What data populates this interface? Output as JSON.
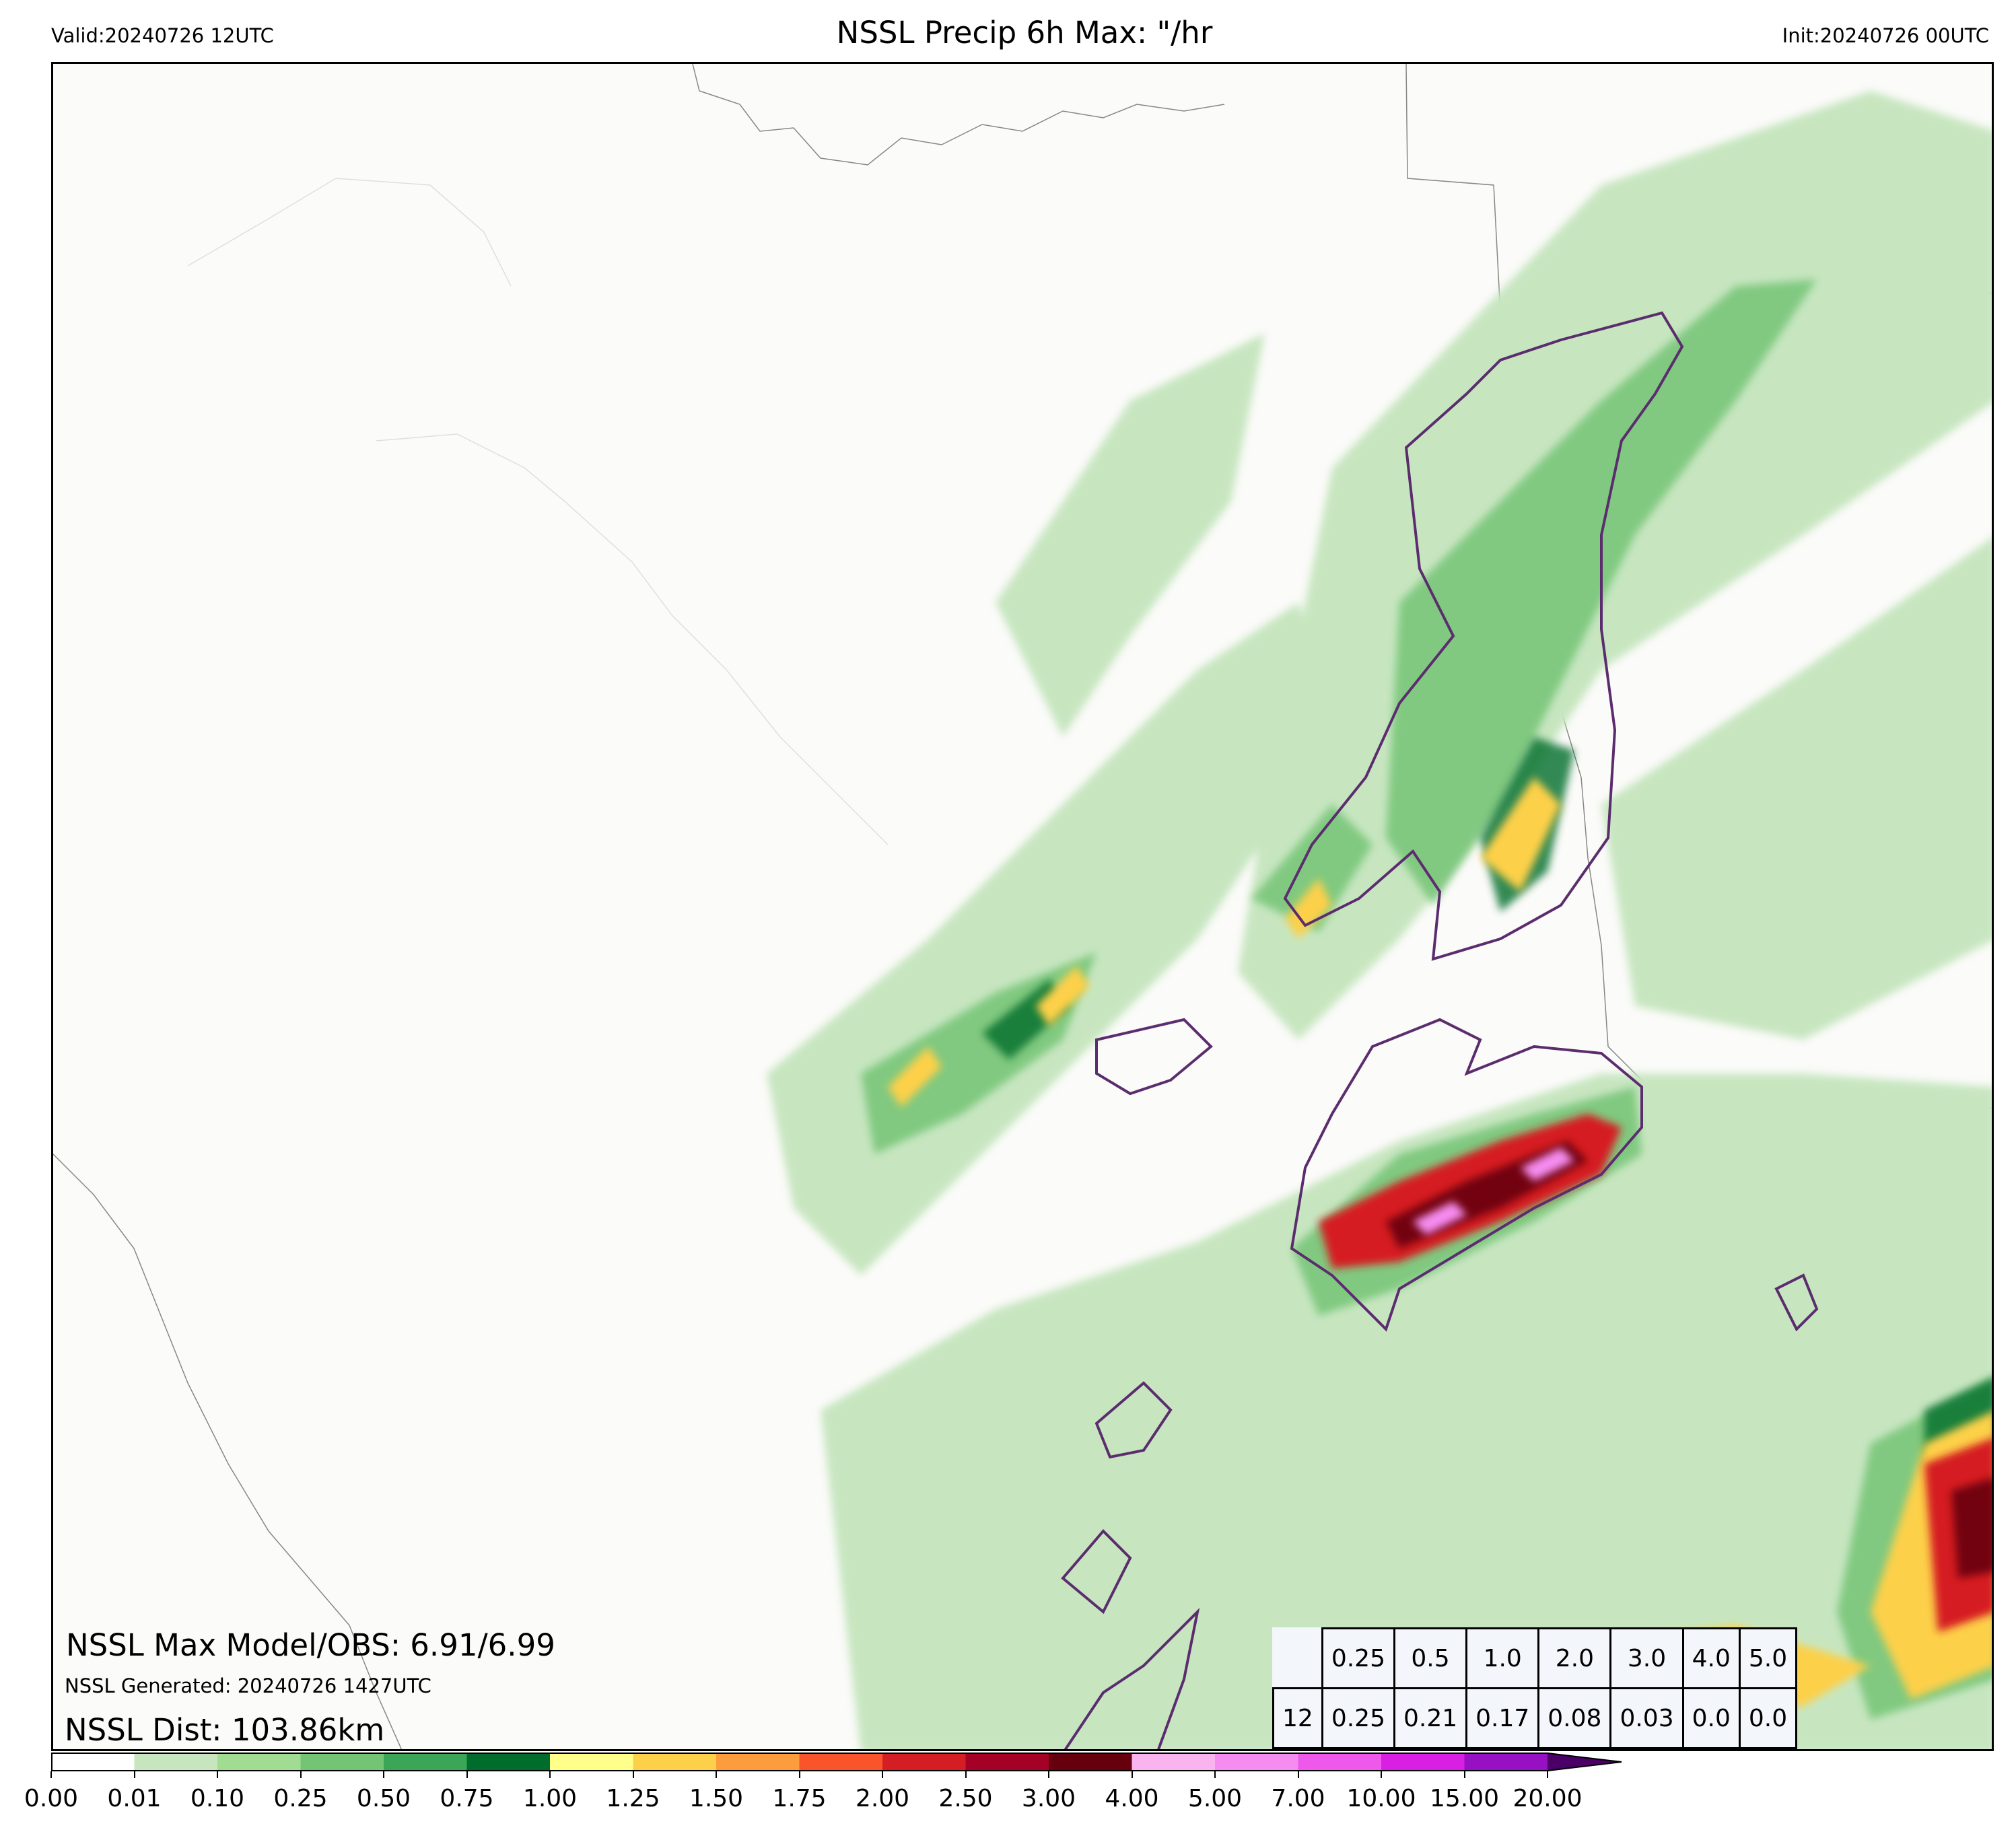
{
  "header": {
    "valid": "Valid:20240726 12UTC",
    "title": "NSSL Precip 6h Max: \"/hr",
    "init": "Init:20240726 00UTC"
  },
  "stats": {
    "max_model_obs": "NSSL Max Model/OBS: 6.91/6.99",
    "generated": "NSSL Generated: 20240726 1427UTC",
    "distance": "NSSL Dist: 103.86km"
  },
  "threshold_table": {
    "thresholds": [
      "0.25",
      "0.5",
      "1.0",
      "2.0",
      "3.0",
      "4.0",
      "5.0"
    ],
    "row_label": "12",
    "values": [
      "0.25",
      "0.21",
      "0.17",
      "0.08",
      "0.03",
      "0.0",
      "0.0"
    ]
  },
  "colorbar": {
    "tick_labels": [
      "0.00",
      "0.01",
      "0.10",
      "0.25",
      "0.50",
      "0.75",
      "1.00",
      "1.25",
      "1.50",
      "1.75",
      "2.00",
      "2.50",
      "3.00",
      "4.00",
      "5.00",
      "7.00",
      "10.00",
      "15.00",
      "20.00"
    ],
    "colors": [
      "#ffffff",
      "#c7e6c0",
      "#a0dc92",
      "#74c476",
      "#3ba657",
      "#006d2c",
      "#ffff8a",
      "#fdd049",
      "#fd9c3c",
      "#f9542a",
      "#d51e24",
      "#a50026",
      "#67000d",
      "#f9b4f0",
      "#f58cf0",
      "#ee59ec",
      "#d91fe3",
      "#9810c3"
    ],
    "extend_color": "#4a0066"
  },
  "map": {
    "ocean_color": "#f2f5fb",
    "land_color": "#fbfbf9",
    "observed_contour_color": "#5b2d6e"
  }
}
